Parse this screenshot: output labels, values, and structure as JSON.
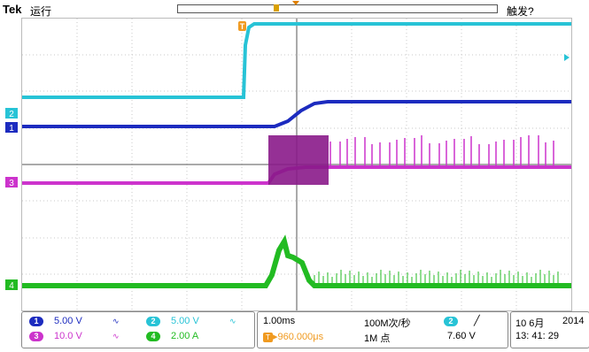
{
  "header": {
    "brand": "Tek",
    "run_state": "运行",
    "trigger_status": "触发?",
    "trigger_marker": "T"
  },
  "channels": [
    {
      "id": "1",
      "scale": "5.00 V",
      "coupling": "∿",
      "color": "#1c2bbf"
    },
    {
      "id": "2",
      "scale": "5.00 V",
      "coupling": "∿",
      "color": "#27c3d6"
    },
    {
      "id": "3",
      "scale": "10.0 V",
      "coupling": "∿",
      "color": "#cc33cc"
    },
    {
      "id": "4",
      "scale": "2.00 A",
      "coupling": "",
      "color": "#22bb22"
    }
  ],
  "timebase": {
    "scale": "1.00ms",
    "position": "▸960.000μs",
    "sample_rate": "100M次/秒",
    "record_length": "1M 点"
  },
  "trigger": {
    "source": "2",
    "slope": "╱",
    "level": "7.60 V"
  },
  "datetime": {
    "date": "10 6月",
    "year": "2014",
    "time": "13: 41: 29"
  }
}
